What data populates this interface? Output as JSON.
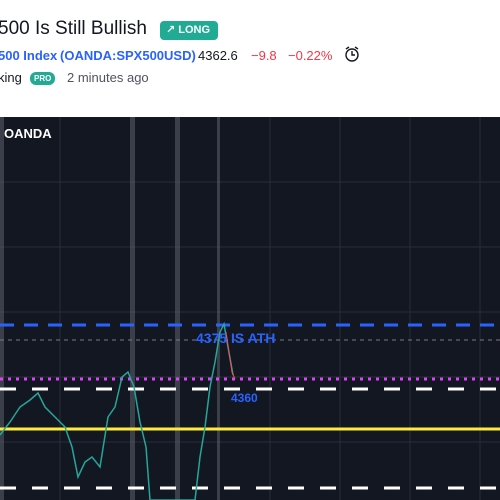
{
  "header": {
    "title": "500 Is Still Bullish",
    "badge": "LONG",
    "symbol_name": "500 Index",
    "symbol_code": "(OANDA:SPX500USD)",
    "price": "4362.6",
    "change": "−9.8",
    "change_percent": "−0.22%",
    "author": "king",
    "author_badge": "PRO",
    "time": "2 minutes ago"
  },
  "chart": {
    "source": "OANDA",
    "annotation_ath": "4375 IS ATH",
    "annotation_level": "4360"
  }
}
